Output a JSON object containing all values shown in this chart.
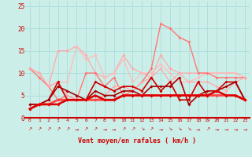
{
  "x": [
    0,
    1,
    2,
    3,
    4,
    5,
    6,
    7,
    8,
    9,
    10,
    11,
    12,
    13,
    14,
    15,
    16,
    17,
    18,
    19,
    20,
    21,
    22,
    23
  ],
  "background_color": "#cceee8",
  "grid_color": "#aadddd",
  "xlabel": "Vent moyen/en rafales ( km/h )",
  "xlabel_color": "#cc0000",
  "tick_color": "#cc0000",
  "ylim": [
    0,
    26
  ],
  "yticks": [
    0,
    5,
    10,
    15,
    20,
    25
  ],
  "series": [
    {
      "y": [
        11,
        10,
        7,
        15,
        15,
        16,
        14,
        10,
        9,
        10,
        14,
        11,
        10,
        9,
        14,
        11,
        10,
        10,
        10,
        10,
        10,
        10,
        10,
        9
      ],
      "color": "#ffaaaa",
      "lw": 0.9,
      "marker": "D",
      "ms": 2.0
    },
    {
      "y": [
        11,
        10,
        7,
        8,
        8,
        16,
        13,
        14,
        9,
        10,
        13,
        8,
        10,
        10,
        12,
        10,
        8,
        8,
        9,
        10,
        10,
        10,
        10,
        9
      ],
      "color": "#ffbbbb",
      "lw": 0.9,
      "marker": "D",
      "ms": 2.0
    },
    {
      "y": [
        11,
        9,
        7,
        4,
        5,
        4,
        10,
        10,
        7,
        9,
        5,
        6,
        8,
        11,
        21,
        20,
        18,
        17,
        10,
        10,
        9,
        9,
        9,
        9
      ],
      "color": "#ff7777",
      "lw": 1.0,
      "marker": "D",
      "ms": 2.0
    },
    {
      "y": [
        11,
        10,
        7,
        8,
        5,
        4,
        4,
        4,
        5,
        7,
        7,
        6,
        8,
        9,
        11,
        8,
        10,
        8,
        8,
        8,
        7,
        6,
        8,
        9
      ],
      "color": "#ffaaaa",
      "lw": 0.9,
      "marker": "D",
      "ms": 2.0
    },
    {
      "y": [
        3,
        3,
        4,
        8,
        4,
        4,
        4,
        8,
        7,
        6,
        7,
        7,
        6,
        9,
        6,
        8,
        4,
        4,
        8,
        5,
        6,
        8,
        8,
        4
      ],
      "color": "#cc0000",
      "lw": 1.2,
      "marker": "D",
      "ms": 2.0
    },
    {
      "y": [
        3,
        3,
        4,
        7,
        6,
        5,
        4,
        6,
        5,
        5,
        6,
        6,
        5,
        7,
        7,
        7,
        9,
        3,
        5,
        6,
        6,
        7,
        8,
        4
      ],
      "color": "#aa0000",
      "lw": 1.2,
      "marker": "D",
      "ms": 2.0
    },
    {
      "y": [
        2,
        3,
        3,
        4,
        4,
        4,
        4,
        4,
        4,
        4,
        5,
        5,
        5,
        5,
        5,
        5,
        5,
        5,
        5,
        5,
        5,
        5,
        5,
        4
      ],
      "color": "#ff4444",
      "lw": 2.0,
      "marker": "D",
      "ms": 2.0
    },
    {
      "y": [
        2,
        3,
        3,
        3,
        4,
        4,
        4,
        5,
        4,
        4,
        5,
        5,
        5,
        5,
        5,
        5,
        5,
        5,
        5,
        5,
        6,
        5,
        5,
        4
      ],
      "color": "#dd0000",
      "lw": 1.8,
      "marker": "D",
      "ms": 2.0
    }
  ],
  "wind_arrows": [
    "↗",
    "↗",
    "↗",
    "↗",
    "↗",
    "→",
    "↗",
    "↗",
    "→",
    "→",
    "↗",
    "↗",
    "↘",
    "↗",
    "→",
    "↘",
    "↘",
    "↘",
    "→",
    "↗",
    "→",
    "→",
    "→",
    "→"
  ],
  "wind_arrows_color": "#cc0000",
  "axisline_color": "#cc0000"
}
